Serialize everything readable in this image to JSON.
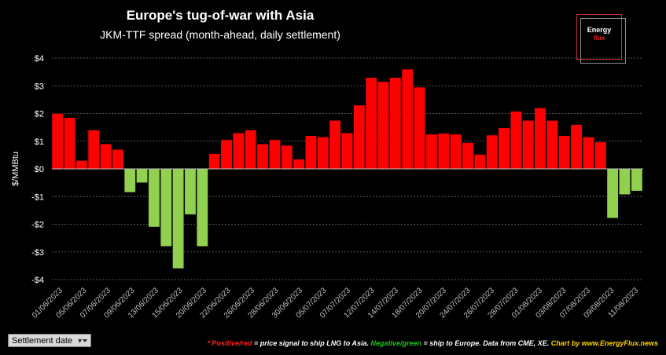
{
  "chart_data": {
    "type": "bar",
    "title": "Europe's tug-of-war with Asia",
    "subtitle": "JKM-TTF spread (month-ahead, daily settlement)",
    "ylabel": "$/MMBtu",
    "ylim": [
      -4,
      4
    ],
    "yticks": [
      4,
      3,
      2,
      1,
      0,
      -1,
      -2,
      -3,
      -4
    ],
    "ytick_labels": [
      "$4",
      "$3",
      "$2",
      "$1",
      "$0",
      "-$1",
      "-$2",
      "-$3",
      "-$4"
    ],
    "grid": true,
    "xtick_labels": [
      "01/06/2023",
      "05/06/2023",
      "07/06/2023",
      "09/06/2023",
      "13/06/2023",
      "15/06/2023",
      "20/06/2023",
      "22/06/2023",
      "26/06/2023",
      "28/06/2023",
      "30/06/2023",
      "05/07/2023",
      "07/07/2023",
      "12/07/2023",
      "14/07/2023",
      "18/07/2023",
      "20/07/2023",
      "24/07/2023",
      "26/07/2023",
      "28/07/2023",
      "01/08/2023",
      "03/08/2023",
      "07/08/2023",
      "09/08/2023",
      "11/08/2023"
    ],
    "values": [
      2.0,
      1.85,
      0.3,
      1.4,
      0.9,
      0.7,
      -0.85,
      -0.5,
      -2.1,
      -2.8,
      -3.6,
      -1.65,
      -2.8,
      0.55,
      1.05,
      1.3,
      1.4,
      0.9,
      1.05,
      0.85,
      0.35,
      1.2,
      1.15,
      1.75,
      1.3,
      2.3,
      3.3,
      3.15,
      3.3,
      3.6,
      2.95,
      1.25,
      1.28,
      1.25,
      0.95,
      0.52,
      1.22,
      1.48,
      2.08,
      1.75,
      2.2,
      1.75,
      1.2,
      1.6,
      1.15,
      0.97,
      -1.78,
      -0.93,
      -0.8
    ],
    "colors": {
      "positive": "#ff0000",
      "negative": "#92d050",
      "grid": "#555555",
      "axis_text": "#ffffff"
    }
  },
  "logo": {
    "line1": "Energy",
    "line2": "flux"
  },
  "filter": {
    "label": "Settlement date"
  },
  "footnote": {
    "star": "*",
    "positive": "Positive/red",
    "text1": " = price signal to ship LNG to Asia. ",
    "negative": "Negative/green",
    "text2": " = ship to Europe. Data from CME, XE. ",
    "credit": "Chart by www.EnergyFlux.news"
  }
}
